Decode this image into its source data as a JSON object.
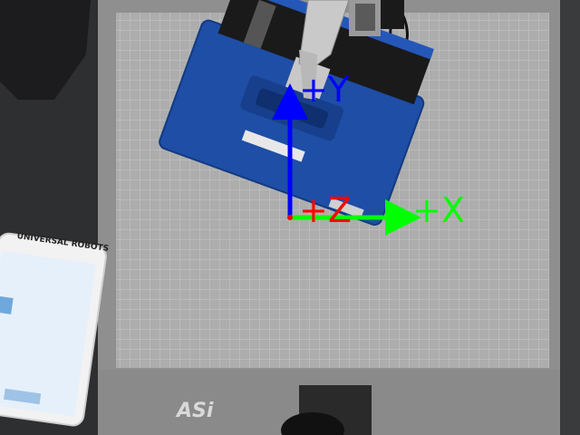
{
  "scene": {
    "description_colors": {
      "floor": "#3a3a3a",
      "table": "#8e8e8e",
      "grid_mat": "#a9a9a9",
      "grid_line": "#d8d8d8",
      "case_blue": "#1f4fa8",
      "axis_x": "#00ff00",
      "axis_y": "#0000ff",
      "axis_z": "#ff0000"
    }
  },
  "axes": {
    "x_label": "+X",
    "y_label": "+Y",
    "z_label": "+Z"
  },
  "teach_pendant": {
    "brand_text": "UNIVERSAL ROBOTS"
  },
  "table_logo": {
    "text": "ASi"
  }
}
